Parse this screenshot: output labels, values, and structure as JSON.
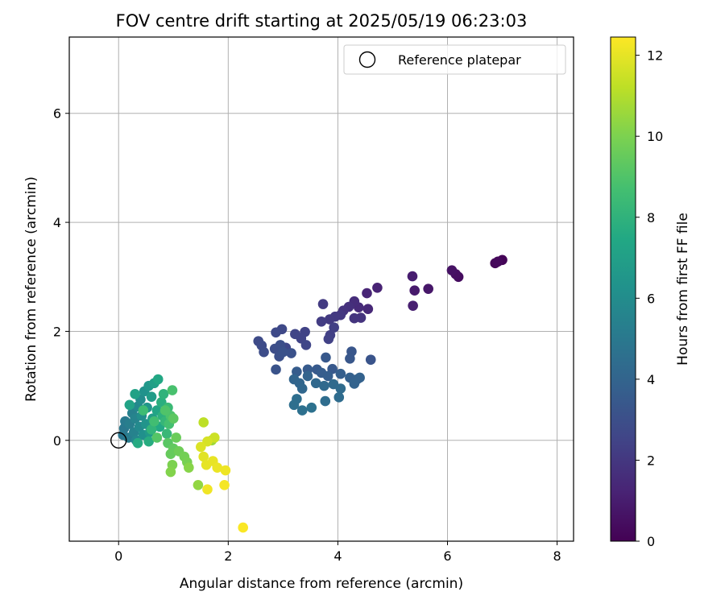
{
  "chart_data": {
    "type": "scatter",
    "title": "FOV centre drift starting at 2025/05/19 06:23:03",
    "xlabel": "Angular distance from reference (arcmin)",
    "ylabel": "Rotation from reference (arcmin)",
    "xlim": [
      -0.9,
      8.3
    ],
    "ylim": [
      -1.85,
      7.4
    ],
    "xticks": [
      0,
      2,
      4,
      6,
      8
    ],
    "yticks": [
      0,
      2,
      4,
      6
    ],
    "grid": true,
    "legend": {
      "position": "top-right",
      "entries": [
        "Reference platepar"
      ]
    },
    "reference_point": {
      "x": 0,
      "y": 0
    },
    "colorbar": {
      "label": "Hours from first FF file",
      "range": [
        0,
        12.45
      ],
      "ticks": [
        0,
        2,
        4,
        6,
        8,
        10,
        12
      ],
      "colormap": "viridis"
    },
    "points": [
      {
        "x": 7.0,
        "y": 3.31,
        "h": 0.1
      },
      {
        "x": 6.87,
        "y": 3.25,
        "h": 0.2
      },
      {
        "x": 6.92,
        "y": 3.28,
        "h": 0.25
      },
      {
        "x": 6.2,
        "y": 3.0,
        "h": 0.4
      },
      {
        "x": 6.15,
        "y": 3.05,
        "h": 0.5
      },
      {
        "x": 6.08,
        "y": 3.12,
        "h": 0.6
      },
      {
        "x": 5.65,
        "y": 2.78,
        "h": 0.8
      },
      {
        "x": 5.4,
        "y": 2.75,
        "h": 0.9
      },
      {
        "x": 5.36,
        "y": 3.01,
        "h": 1.0
      },
      {
        "x": 5.37,
        "y": 2.47,
        "h": 1.1
      },
      {
        "x": 4.72,
        "y": 2.8,
        "h": 1.2
      },
      {
        "x": 4.53,
        "y": 2.7,
        "h": 1.3
      },
      {
        "x": 4.55,
        "y": 2.41,
        "h": 1.4
      },
      {
        "x": 4.38,
        "y": 2.44,
        "h": 1.5
      },
      {
        "x": 4.3,
        "y": 2.55,
        "h": 1.6
      },
      {
        "x": 4.2,
        "y": 2.45,
        "h": 1.7
      },
      {
        "x": 4.1,
        "y": 2.38,
        "h": 1.8
      },
      {
        "x": 4.42,
        "y": 2.25,
        "h": 1.85
      },
      {
        "x": 4.3,
        "y": 2.24,
        "h": 1.9
      },
      {
        "x": 4.05,
        "y": 2.3,
        "h": 2.0
      },
      {
        "x": 3.95,
        "y": 2.27,
        "h": 2.05
      },
      {
        "x": 3.85,
        "y": 2.22,
        "h": 2.1
      },
      {
        "x": 3.73,
        "y": 2.5,
        "h": 2.15
      },
      {
        "x": 3.7,
        "y": 2.18,
        "h": 2.2
      },
      {
        "x": 3.93,
        "y": 2.07,
        "h": 2.3
      },
      {
        "x": 3.86,
        "y": 1.93,
        "h": 2.35
      },
      {
        "x": 3.83,
        "y": 1.86,
        "h": 2.4
      },
      {
        "x": 3.4,
        "y": 1.99,
        "h": 2.45
      },
      {
        "x": 3.33,
        "y": 1.87,
        "h": 2.5
      },
      {
        "x": 3.22,
        "y": 1.95,
        "h": 2.55
      },
      {
        "x": 3.42,
        "y": 1.75,
        "h": 2.6
      },
      {
        "x": 3.05,
        "y": 1.7,
        "h": 2.65
      },
      {
        "x": 2.98,
        "y": 2.04,
        "h": 2.7
      },
      {
        "x": 2.87,
        "y": 1.98,
        "h": 2.75
      },
      {
        "x": 2.55,
        "y": 1.82,
        "h": 2.8
      },
      {
        "x": 2.61,
        "y": 1.74,
        "h": 2.85
      },
      {
        "x": 2.65,
        "y": 1.62,
        "h": 2.9
      },
      {
        "x": 2.85,
        "y": 1.68,
        "h": 2.95
      },
      {
        "x": 2.95,
        "y": 1.75,
        "h": 3.0
      },
      {
        "x": 2.93,
        "y": 1.54,
        "h": 3.05
      },
      {
        "x": 3.15,
        "y": 1.6,
        "h": 3.1
      },
      {
        "x": 3.0,
        "y": 1.62,
        "h": 3.15
      },
      {
        "x": 2.87,
        "y": 1.3,
        "h": 3.2
      },
      {
        "x": 4.6,
        "y": 1.48,
        "h": 3.25
      },
      {
        "x": 4.25,
        "y": 1.63,
        "h": 3.3
      },
      {
        "x": 4.22,
        "y": 1.5,
        "h": 3.35
      },
      {
        "x": 3.78,
        "y": 1.52,
        "h": 3.4
      },
      {
        "x": 3.9,
        "y": 1.31,
        "h": 3.45
      },
      {
        "x": 3.62,
        "y": 1.3,
        "h": 3.5
      },
      {
        "x": 3.45,
        "y": 1.3,
        "h": 3.55
      },
      {
        "x": 3.25,
        "y": 1.26,
        "h": 3.6
      },
      {
        "x": 3.7,
        "y": 1.24,
        "h": 3.65
      },
      {
        "x": 3.82,
        "y": 1.18,
        "h": 3.7
      },
      {
        "x": 4.05,
        "y": 1.22,
        "h": 3.75
      },
      {
        "x": 4.22,
        "y": 1.15,
        "h": 3.8
      },
      {
        "x": 4.35,
        "y": 1.12,
        "h": 3.85
      },
      {
        "x": 4.4,
        "y": 1.15,
        "h": 3.9
      },
      {
        "x": 4.3,
        "y": 1.04,
        "h": 3.95
      },
      {
        "x": 3.45,
        "y": 1.18,
        "h": 4.0
      },
      {
        "x": 3.2,
        "y": 1.12,
        "h": 4.05
      },
      {
        "x": 3.3,
        "y": 1.05,
        "h": 4.1
      },
      {
        "x": 3.35,
        "y": 0.95,
        "h": 4.15
      },
      {
        "x": 3.6,
        "y": 1.05,
        "h": 4.2
      },
      {
        "x": 3.75,
        "y": 1.0,
        "h": 4.25
      },
      {
        "x": 3.92,
        "y": 1.03,
        "h": 4.3
      },
      {
        "x": 4.05,
        "y": 0.95,
        "h": 4.35
      },
      {
        "x": 4.02,
        "y": 0.79,
        "h": 4.4
      },
      {
        "x": 3.77,
        "y": 0.72,
        "h": 4.45
      },
      {
        "x": 3.25,
        "y": 0.76,
        "h": 4.5
      },
      {
        "x": 3.2,
        "y": 0.65,
        "h": 4.55
      },
      {
        "x": 3.35,
        "y": 0.55,
        "h": 4.6
      },
      {
        "x": 3.52,
        "y": 0.6,
        "h": 4.65
      },
      {
        "x": 0.08,
        "y": 0.1,
        "h": 4.9
      },
      {
        "x": 0.1,
        "y": 0.22,
        "h": 5.0
      },
      {
        "x": 0.12,
        "y": 0.35,
        "h": 5.1
      },
      {
        "x": 0.18,
        "y": 0.05,
        "h": 5.2
      },
      {
        "x": 0.2,
        "y": 0.3,
        "h": 5.3
      },
      {
        "x": 0.25,
        "y": 0.5,
        "h": 5.4
      },
      {
        "x": 0.28,
        "y": 0.15,
        "h": 5.5
      },
      {
        "x": 0.3,
        "y": 0.4,
        "h": 5.6
      },
      {
        "x": 0.32,
        "y": 0.0,
        "h": 5.7
      },
      {
        "x": 0.35,
        "y": 0.62,
        "h": 5.8
      },
      {
        "x": 0.38,
        "y": 0.25,
        "h": 5.9
      },
      {
        "x": 0.4,
        "y": 0.75,
        "h": 6.0
      },
      {
        "x": 0.42,
        "y": 0.45,
        "h": 6.1
      },
      {
        "x": 0.45,
        "y": 0.1,
        "h": 6.2
      },
      {
        "x": 0.47,
        "y": 0.9,
        "h": 6.3
      },
      {
        "x": 0.5,
        "y": 0.3,
        "h": 6.4
      },
      {
        "x": 0.52,
        "y": 0.6,
        "h": 6.5
      },
      {
        "x": 0.55,
        "y": 1.0,
        "h": 6.6
      },
      {
        "x": 0.57,
        "y": 0.15,
        "h": 6.7
      },
      {
        "x": 0.6,
        "y": 0.8,
        "h": 6.8
      },
      {
        "x": 0.62,
        "y": 0.4,
        "h": 6.9
      },
      {
        "x": 0.65,
        "y": 1.05,
        "h": 7.0
      },
      {
        "x": 0.3,
        "y": 0.85,
        "h": 7.1
      },
      {
        "x": 0.2,
        "y": 0.65,
        "h": 7.2
      },
      {
        "x": 0.7,
        "y": 0.55,
        "h": 7.3
      },
      {
        "x": 0.72,
        "y": 1.12,
        "h": 7.4
      },
      {
        "x": 0.75,
        "y": 0.25,
        "h": 7.5
      },
      {
        "x": 0.35,
        "y": -0.05,
        "h": 7.6
      },
      {
        "x": 0.55,
        "y": -0.02,
        "h": 7.7
      },
      {
        "x": 0.78,
        "y": 0.7,
        "h": 7.8
      },
      {
        "x": 0.8,
        "y": 0.45,
        "h": 7.9
      },
      {
        "x": 0.82,
        "y": 0.85,
        "h": 8.0
      },
      {
        "x": 0.6,
        "y": 0.2,
        "h": 8.1
      },
      {
        "x": 0.85,
        "y": 0.35,
        "h": 8.2
      },
      {
        "x": 0.88,
        "y": 0.12,
        "h": 8.3
      },
      {
        "x": 0.9,
        "y": 0.6,
        "h": 8.4
      },
      {
        "x": 0.45,
        "y": 0.55,
        "h": 8.5
      },
      {
        "x": 0.65,
        "y": 0.35,
        "h": 8.6
      },
      {
        "x": 0.92,
        "y": 0.3,
        "h": 8.7
      },
      {
        "x": 0.98,
        "y": 0.92,
        "h": 8.8
      },
      {
        "x": 0.95,
        "y": 0.45,
        "h": 8.9
      },
      {
        "x": 0.85,
        "y": 0.55,
        "h": 9.0
      },
      {
        "x": 0.7,
        "y": 0.05,
        "h": 9.1
      },
      {
        "x": 0.9,
        "y": -0.05,
        "h": 9.2
      },
      {
        "x": 1.0,
        "y": 0.4,
        "h": 9.3
      },
      {
        "x": 1.0,
        "y": -0.15,
        "h": 9.4
      },
      {
        "x": 0.95,
        "y": -0.25,
        "h": 9.5
      },
      {
        "x": 1.05,
        "y": 0.05,
        "h": 9.6
      },
      {
        "x": 1.1,
        "y": -0.2,
        "h": 9.7
      },
      {
        "x": 1.2,
        "y": -0.3,
        "h": 9.8
      },
      {
        "x": 1.25,
        "y": -0.4,
        "h": 9.9
      },
      {
        "x": 0.98,
        "y": -0.45,
        "h": 10.0
      },
      {
        "x": 0.95,
        "y": -0.58,
        "h": 10.1
      },
      {
        "x": 1.28,
        "y": -0.5,
        "h": 10.2
      },
      {
        "x": 1.45,
        "y": -0.82,
        "h": 10.4
      },
      {
        "x": 1.7,
        "y": 0.0,
        "h": 10.6
      },
      {
        "x": 1.55,
        "y": 0.33,
        "h": 11.2
      },
      {
        "x": 1.75,
        "y": 0.05,
        "h": 11.5
      },
      {
        "x": 1.62,
        "y": -0.02,
        "h": 11.7
      },
      {
        "x": 1.5,
        "y": -0.12,
        "h": 11.8
      },
      {
        "x": 1.55,
        "y": -0.3,
        "h": 11.9
      },
      {
        "x": 1.6,
        "y": -0.45,
        "h": 12.0
      },
      {
        "x": 1.72,
        "y": -0.38,
        "h": 12.05
      },
      {
        "x": 1.8,
        "y": -0.5,
        "h": 12.1
      },
      {
        "x": 1.95,
        "y": -0.55,
        "h": 12.15
      },
      {
        "x": 1.62,
        "y": -0.9,
        "h": 12.2
      },
      {
        "x": 1.93,
        "y": -0.82,
        "h": 12.3
      },
      {
        "x": 2.27,
        "y": -1.6,
        "h": 12.4
      }
    ]
  }
}
